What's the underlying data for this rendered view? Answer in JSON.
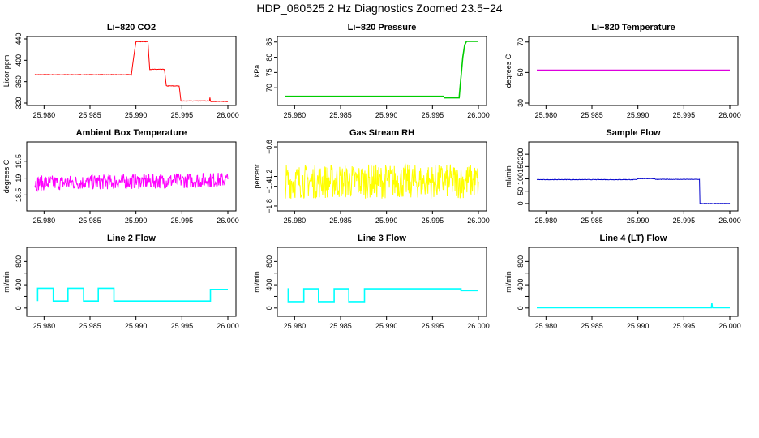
{
  "title": "HDP_080525  2 Hz Diagnostics Zoomed 23.5−24",
  "x_ticks": [
    "25.980",
    "25.985",
    "25.990",
    "25.995",
    "26.000"
  ],
  "colors": {
    "axis": "#000000"
  },
  "chart_data": [
    {
      "type": "line",
      "title": "Li−820 CO2",
      "ylabel": "Licor ppm",
      "color": "#ff0000",
      "noise": 1,
      "xlim": [
        25.979,
        26.0
      ],
      "ylim": [
        320,
        440
      ],
      "y_ticks": [
        320,
        360,
        400,
        440
      ],
      "y_tick_labels": [
        "320",
        "360",
        "400",
        "440"
      ],
      "x": [
        25.979,
        25.9895,
        25.9897,
        25.99,
        25.9913,
        25.9915,
        25.9931,
        25.9933,
        25.9947,
        25.9949,
        25.998,
        25.99805,
        25.9981,
        25.99815,
        26.0
      ],
      "y": [
        373,
        373,
        400,
        435,
        435,
        383,
        383,
        352,
        352,
        324,
        324,
        330,
        324,
        323,
        323
      ]
    },
    {
      "type": "line",
      "title": "Li−820 Pressure",
      "ylabel": "kPa",
      "color": "#00cc00",
      "noise": 0.1,
      "xlim": [
        25.979,
        26.0
      ],
      "ylim": [
        65,
        86
      ],
      "y_ticks": [
        70,
        75,
        80,
        85
      ],
      "y_tick_labels": [
        "70",
        "75",
        "80",
        "85"
      ],
      "x": [
        25.979,
        25.9962,
        25.9963,
        25.9979,
        25.998,
        25.9983,
        25.9985,
        25.9987,
        26.0
      ],
      "y": [
        67.2,
        67.2,
        66.7,
        66.7,
        70,
        80,
        84,
        85.2,
        85.2
      ]
    },
    {
      "type": "line",
      "title": "Li−820 Temperature",
      "ylabel": "degrees C",
      "color": "#dd00dd",
      "noise": 0,
      "xlim": [
        25.979,
        26.0
      ],
      "ylim": [
        30,
        72
      ],
      "y_ticks": [
        30,
        50,
        70
      ],
      "y_tick_labels": [
        "30",
        "50",
        "70"
      ],
      "x": [
        25.979,
        26.0
      ],
      "y": [
        51.5,
        51.5
      ]
    },
    {
      "type": "line",
      "title": "Ambient Box Temperature",
      "ylabel": "degrees C",
      "color": "#ff00ff",
      "noise": 0.45,
      "xlim": [
        25.979,
        26.0
      ],
      "ylim": [
        18.1,
        20.0
      ],
      "y_ticks": [
        18.5,
        19.0,
        19.5
      ],
      "y_tick_labels": [
        "18.5",
        "19",
        "19.5"
      ],
      "x": [
        25.979,
        26.0
      ],
      "y": [
        18.85,
        18.95
      ]
    },
    {
      "type": "line",
      "title": "Gas Stream RH",
      "ylabel": "percent",
      "color": "#ffff00",
      "noise": 0.7,
      "xlim": [
        25.979,
        26.0
      ],
      "ylim": [
        -1.85,
        -0.55
      ],
      "y_ticks": [
        -1.8,
        -1.4,
        -1.2,
        -0.6
      ],
      "y_tick_labels": [
        "−1.8",
        "−1.4",
        "−1.2",
        "−0.6"
      ],
      "x": [
        25.979,
        26.0
      ],
      "y": [
        -1.3,
        -1.3
      ]
    },
    {
      "type": "line",
      "title": "Sample Flow",
      "ylabel": "ml/min",
      "color": "#0000cc",
      "noise": 2,
      "xlim": [
        25.979,
        26.0
      ],
      "ylim": [
        -20,
        240
      ],
      "y_ticks": [
        0,
        50,
        100,
        150,
        200
      ],
      "y_tick_labels": [
        "0",
        "50",
        "100",
        "150",
        "200"
      ],
      "x": [
        25.979,
        25.9899,
        25.99,
        25.9918,
        25.9919,
        25.9967,
        25.99675,
        26.0
      ],
      "y": [
        97,
        97,
        101,
        101,
        98,
        98,
        0,
        0
      ]
    },
    {
      "type": "line",
      "title": "Line 2 Flow",
      "ylabel": "ml/min",
      "color": "#00ffff",
      "noise": 0,
      "xlim": [
        25.979,
        26.0
      ],
      "ylim": [
        -100,
        1000
      ],
      "y_ticks": [
        0,
        200,
        400,
        600,
        800
      ],
      "y_tick_labels": [
        "0",
        "",
        "400",
        "",
        "800"
      ],
      "x": [
        25.9793,
        25.9793,
        25.981,
        25.981,
        25.9826,
        25.9826,
        25.9843,
        25.9843,
        25.9859,
        25.9859,
        25.9876,
        25.9876,
        25.9981,
        25.9981,
        26.0
      ],
      "y": [
        120,
        340,
        340,
        120,
        120,
        340,
        340,
        120,
        120,
        340,
        340,
        120,
        120,
        320,
        320
      ]
    },
    {
      "type": "line",
      "title": "Line 3 Flow",
      "ylabel": "ml/min",
      "color": "#00ffff",
      "noise": 0,
      "xlim": [
        25.979,
        26.0
      ],
      "ylim": [
        -100,
        1000
      ],
      "y_ticks": [
        0,
        200,
        400,
        600,
        800
      ],
      "y_tick_labels": [
        "0",
        "",
        "400",
        "",
        "800"
      ],
      "x": [
        25.9793,
        25.9793,
        25.9793,
        25.981,
        25.981,
        25.9826,
        25.9826,
        25.9843,
        25.9843,
        25.9859,
        25.9859,
        25.9876,
        25.9876,
        25.9981,
        25.9981,
        26.0
      ],
      "y": [
        120,
        340,
        110,
        110,
        330,
        330,
        110,
        110,
        330,
        330,
        110,
        110,
        330,
        330,
        300,
        300
      ]
    },
    {
      "type": "line",
      "title": "Line 4 (LT) Flow",
      "ylabel": "ml/min",
      "color": "#00ffff",
      "noise": 0,
      "xlim": [
        25.979,
        26.0
      ],
      "ylim": [
        -100,
        1000
      ],
      "y_ticks": [
        0,
        200,
        400,
        600,
        800
      ],
      "y_tick_labels": [
        "0",
        "",
        "400",
        "",
        "800"
      ],
      "x": [
        25.979,
        25.998,
        25.99805,
        25.9981,
        25.99815,
        26.0
      ],
      "y": [
        5,
        5,
        80,
        15,
        5,
        5
      ]
    }
  ]
}
